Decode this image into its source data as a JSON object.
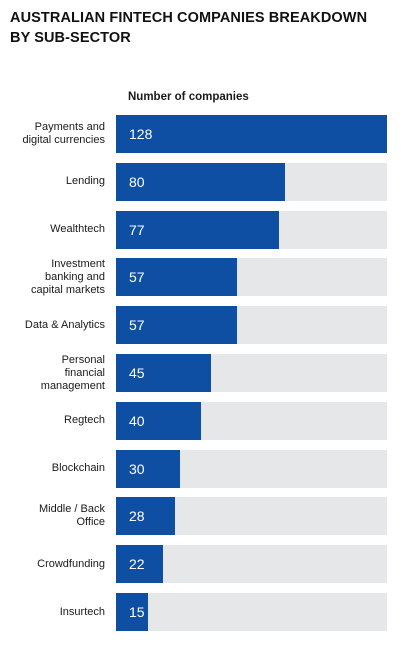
{
  "title": "AUSTRALIAN FINTECH COMPANIES BREAKDOWN\nBY SUB-SECTOR",
  "colors": {
    "bar": "#0f4fa3",
    "track": "#e6e7e9",
    "value_text": "#ffffff"
  },
  "chart_data": {
    "type": "bar",
    "orientation": "horizontal",
    "title": "AUSTRALIAN FINTECH COMPANIES BREAKDOWN\nBY SUB-SECTOR",
    "xlabel": "Number of companies",
    "ylabel": "",
    "xlim": [
      0,
      128
    ],
    "grid": false,
    "legend": "none",
    "categories": [
      "Payments and\ndigital currencies",
      "Lending",
      "Wealthtech",
      "Investment\nbanking and\ncapital markets",
      "Data & Analytics",
      "Personal\nfinancial\nmanagement",
      "Regtech",
      "Blockchain",
      "Middle / Back\nOffice",
      "Crowdfunding",
      "Insurtech"
    ],
    "values": [
      128,
      80,
      77,
      57,
      57,
      45,
      40,
      30,
      28,
      22,
      15
    ]
  }
}
